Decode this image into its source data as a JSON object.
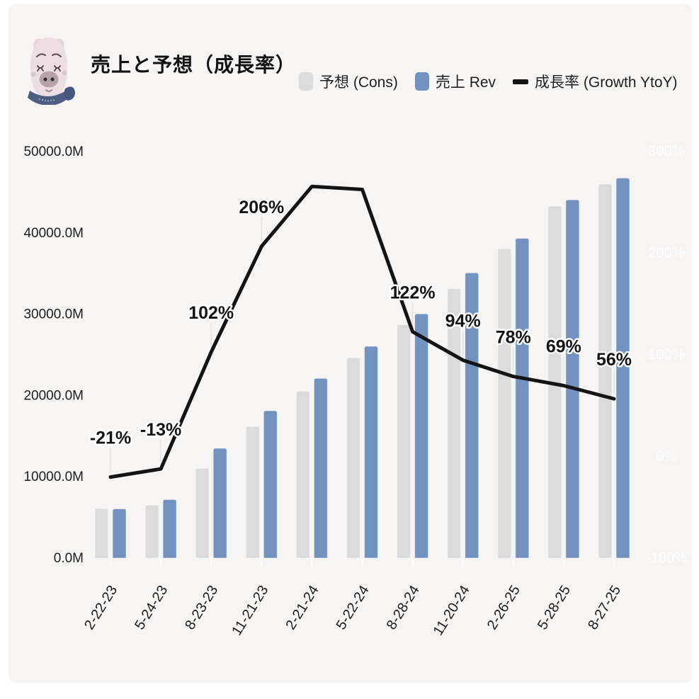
{
  "header": {
    "title": "売上と予想（成長率）",
    "mascot": "pig-mascot-icon"
  },
  "legend": {
    "items": [
      {
        "label": "予想  (Cons)",
        "type": "bar",
        "color": "#dbdbdb"
      },
      {
        "label": "売上 Rev",
        "type": "bar",
        "color": "#7292c0"
      },
      {
        "label": "成長率 (Growth YtoY)",
        "type": "line",
        "color": "#141414"
      }
    ]
  },
  "colors": {
    "card_background": "#f7f4f4",
    "cons_bar": "#dbdbdb",
    "rev_bar": "#7292c0",
    "growth_line": "#141414",
    "axis_text": "#1c1c1c",
    "right_axis_text": "#ffffff",
    "label_halo": "#ffffff",
    "leader_line": "#e6e2e2",
    "x_tick": "#ffffff"
  },
  "chart_data": {
    "type": "bar",
    "subtype": "grouped-bars-with-line-overlay",
    "title": "売上と予想（成長率）",
    "xlabel": "",
    "ylabel_left": "",
    "ylabel_right": "",
    "grid": false,
    "legend_position": "top",
    "categories": [
      "2-22-23",
      "5-24-23",
      "8-23-23",
      "11-21-23",
      "2-21-24",
      "5-22-24",
      "8-28-24",
      "11-20-24",
      "2-26-25",
      "5-28-25",
      "8-27-25"
    ],
    "series": [
      {
        "name": "予想  (Cons)",
        "type": "bar",
        "axis": "left",
        "color": "#dbdbdb",
        "values": [
          6090,
          6520,
          11040,
          16180,
          20550,
          24650,
          28700,
          33160,
          38050,
          43300,
          46020
        ]
      },
      {
        "name": "売上 Rev",
        "type": "bar",
        "axis": "left",
        "color": "#7292c0",
        "values": [
          6051,
          7192,
          13507,
          18120,
          22103,
          26044,
          30040,
          35082,
          39331,
          44062,
          46743
        ]
      },
      {
        "name": "成長率 (Growth YtoY)",
        "type": "line",
        "axis": "right",
        "color": "#141414",
        "values": [
          -21,
          -13,
          102,
          206,
          265,
          262,
          122,
          94,
          78,
          69,
          56
        ],
        "point_labels": [
          "-21%",
          "-13%",
          "102%",
          "206%",
          "",
          "",
          "122%",
          "94%",
          "78%",
          "69%",
          "56%"
        ]
      }
    ],
    "left_axis": {
      "unit": "M",
      "range": [
        0,
        50000
      ],
      "tick_values": [
        0,
        10000,
        20000,
        30000,
        40000,
        50000
      ],
      "ticks": [
        "0.0M",
        "10000.0M",
        "20000.0M",
        "30000.0M",
        "40000.0M",
        "50000.0M"
      ]
    },
    "right_axis": {
      "unit": "%",
      "range": [
        -100,
        300
      ],
      "tick_values": [
        -100,
        0,
        100,
        200,
        300
      ],
      "ticks": [
        "-100%",
        "0%",
        "100%",
        "200%",
        "300%"
      ]
    }
  }
}
